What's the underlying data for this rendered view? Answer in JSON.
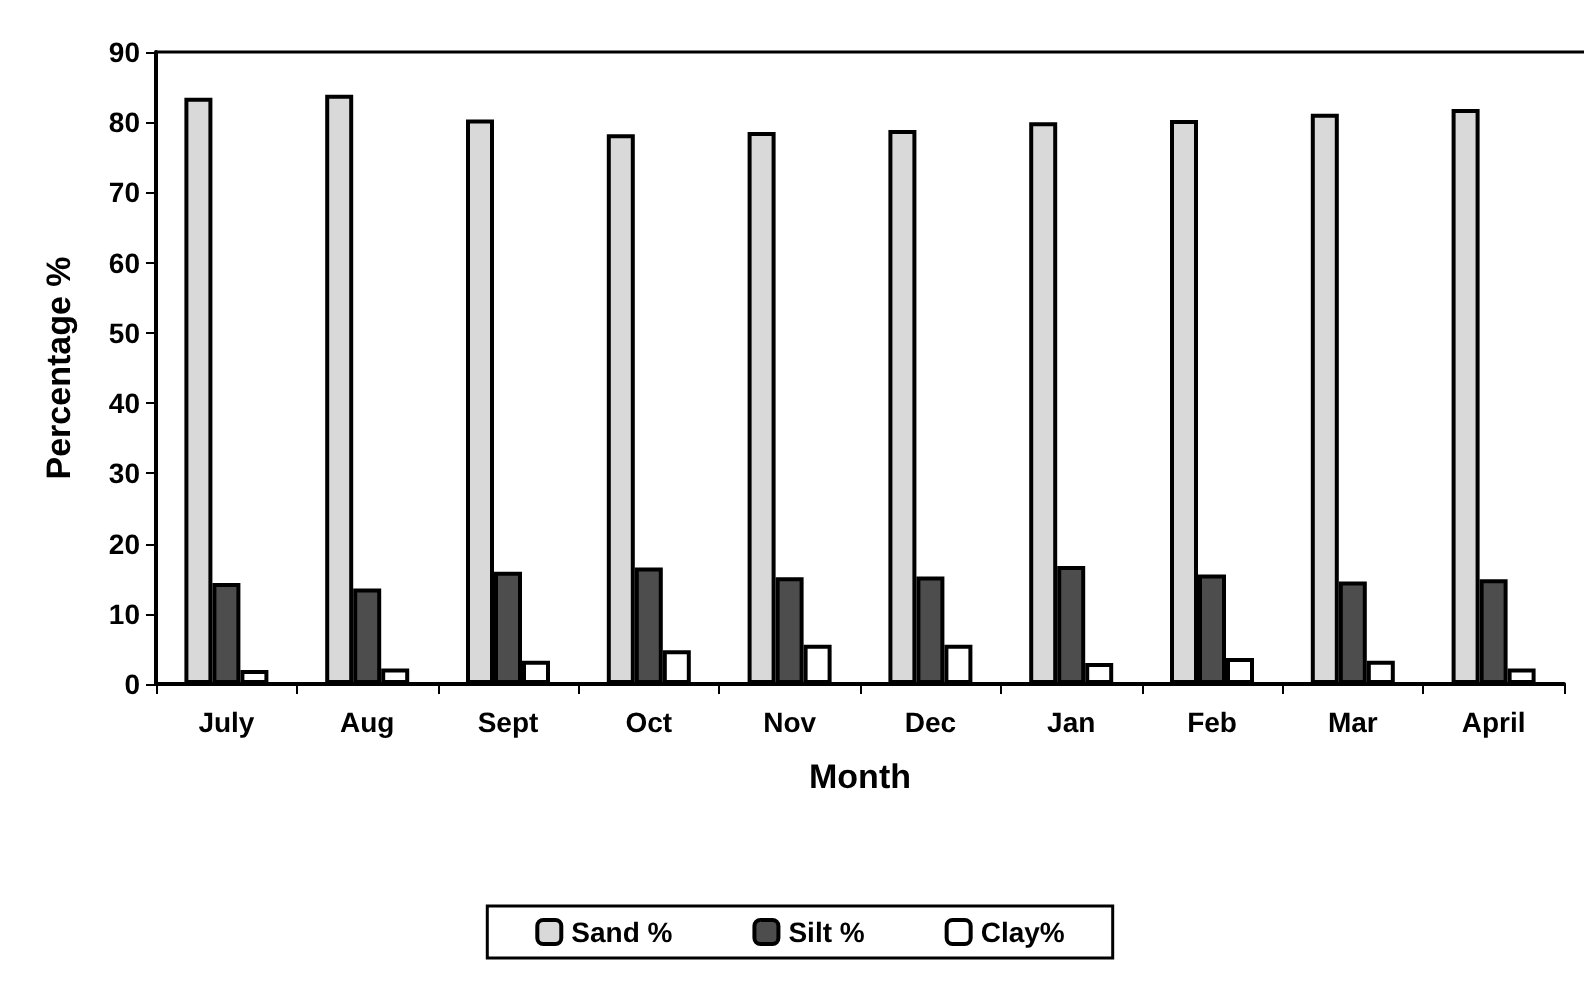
{
  "chart_data": {
    "type": "bar",
    "xlabel": "Month",
    "ylabel": "Percentage %",
    "categories": [
      "July",
      "Aug",
      "Sept",
      "Oct",
      "Nov",
      "Dec",
      "Jan",
      "Feb",
      "Mar",
      "April"
    ],
    "series": [
      {
        "name": "Sand %",
        "color": "#d9d9d9",
        "values": [
          83.5,
          83.9,
          80.4,
          78.3,
          78.6,
          78.9,
          80.0,
          80.3,
          81.2,
          81.9
        ]
      },
      {
        "name": "Silt %",
        "color": "#4d4d4d",
        "values": [
          14.4,
          13.6,
          16.0,
          16.6,
          15.2,
          15.3,
          16.8,
          15.6,
          14.6,
          14.9
        ]
      },
      {
        "name": "Clay%",
        "color": "#ffffff",
        "values": [
          2.0,
          2.2,
          3.3,
          4.8,
          5.6,
          5.6,
          3.0,
          3.7,
          3.3,
          2.2
        ]
      }
    ],
    "ylim": [
      0,
      90
    ],
    "yticks": [
      0,
      10,
      20,
      30,
      40,
      50,
      60,
      70,
      80,
      90
    ],
    "grid": false,
    "legend": "bottom"
  }
}
